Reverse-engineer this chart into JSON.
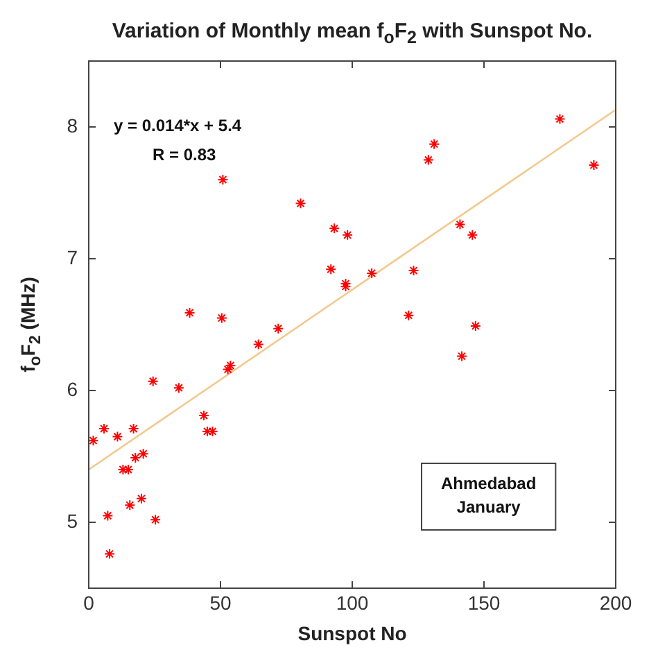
{
  "chart_data": {
    "type": "scatter",
    "title": "Variation of Monthly mean f$_{o}$F$_{2}$ with Sunspot No.",
    "xlabel": "Sunspot No",
    "ylabel": "f$_{o}$F$_{2}$ (MHz)",
    "series": [
      {
        "color": "#ff0000",
        "marker": "cross",
        "x": [
          1.7,
          5.8,
          10.9,
          17,
          13,
          15,
          17.7,
          20.7,
          24.4,
          34.2,
          43.7,
          45,
          47,
          52.8,
          53.8,
          7.2,
          15.6,
          20,
          25.3,
          7.9,
          38.3,
          50.5,
          64.4,
          71.9,
          50.9,
          80.4,
          93.2,
          98.2,
          91.9,
          97.5,
          97.5,
          107.4,
          123.3,
          121.4,
          131.1,
          128.9,
          140.9,
          145.6,
          146.8,
          141.6,
          178.8,
          191.7
        ],
        "values": [
          5.62,
          5.71,
          5.65,
          5.71,
          5.4,
          5.4,
          5.49,
          5.52,
          6.07,
          6.02,
          5.81,
          5.69,
          5.69,
          6.16,
          6.19,
          5.05,
          5.13,
          5.18,
          5.02,
          4.76,
          6.59,
          6.55,
          6.35,
          6.47,
          7.6,
          7.42,
          7.23,
          7.18,
          6.92,
          6.81,
          6.79,
          6.89,
          6.91,
          6.57,
          7.87,
          7.75,
          7.26,
          7.18,
          6.49,
          6.26,
          8.06,
          7.71
        ]
      },
      {
        "type": "line",
        "color": "#f2c98c",
        "marker": "none",
        "x": [
          0,
          200
        ],
        "values": [
          5.4,
          8.13
        ]
      }
    ],
    "xlim": [
      0,
      200
    ],
    "xticks": [
      0,
      50,
      100,
      150,
      200
    ],
    "ylim": [
      4.5,
      8.5
    ],
    "yticks": [
      5,
      6,
      7,
      8
    ],
    "grid": false,
    "legend": false,
    "annotations": [
      "y = 0.014*x + 5.4",
      "R = 0.83",
      "Ahmedabad\nJanuary"
    ]
  }
}
